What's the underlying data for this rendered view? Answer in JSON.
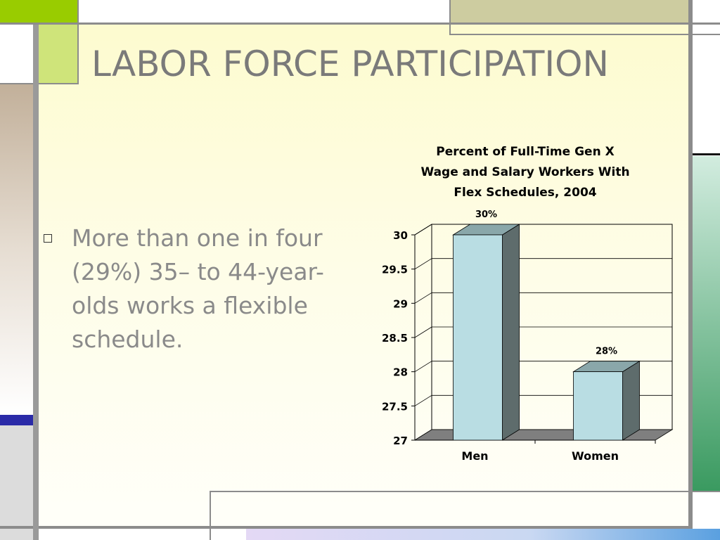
{
  "slide": {
    "title": "LABOR FORCE PARTICIPATION",
    "bullets": [
      "More than one in four (29%) 35– to 44-year-olds works a flexible schedule."
    ]
  },
  "colors": {
    "title": "#7a7a7a",
    "bullet_text": "#8a8a8a",
    "bar_front": "#b9dde3",
    "bar_top": "#8aa7aa",
    "bar_side": "#5e6c6c",
    "floor": "#7f7f7f",
    "accent_green": "#99cc00",
    "accent_olive": "#cdcca0",
    "accent_tan": "#c2b09a",
    "accent_blue": "#2a2aa8",
    "accent_teal": "#3a9a60"
  },
  "chart_data": {
    "type": "bar",
    "title_lines": [
      "Percent of Full-Time Gen X",
      "Wage and Salary Workers With",
      "Flex Schedules, 2004"
    ],
    "categories": [
      "Men",
      "Women"
    ],
    "values": [
      30,
      28
    ],
    "data_labels": [
      "30%",
      "28%"
    ],
    "y_ticks": [
      "30",
      "29.5",
      "29",
      "28.5",
      "28",
      "27.5",
      "27"
    ],
    "ylim": [
      27,
      30
    ],
    "grid": true,
    "style": "3d-bar"
  }
}
